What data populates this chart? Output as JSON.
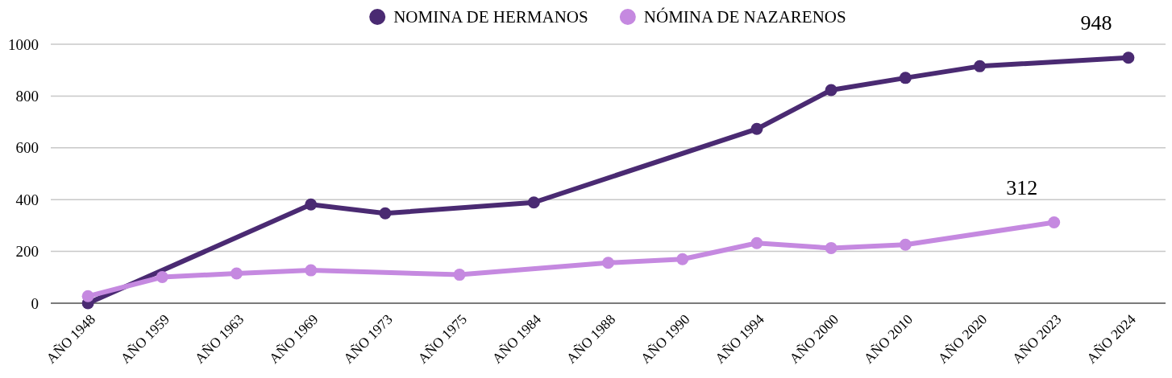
{
  "chart_data": {
    "type": "line",
    "categories": [
      "AÑO 1948",
      "AÑO 1959",
      "AÑO 1963",
      "AÑO 1969",
      "AÑO 1973",
      "AÑO 1975",
      "AÑO 1984",
      "AÑO 1988",
      "AÑO 1990",
      "AÑO 1994",
      "AÑO 2000",
      "AÑO 2010",
      "AÑO 2020",
      "AÑO 2023",
      "AÑO 2024"
    ],
    "series": [
      {
        "name": "NOMINA DE HERMANOS",
        "color": "#4a2a72",
        "values": [
          0,
          null,
          null,
          381,
          347,
          null,
          389,
          null,
          null,
          673,
          823,
          870,
          915,
          null,
          948
        ],
        "value_labels": [
          null,
          null,
          null,
          null,
          null,
          null,
          null,
          null,
          null,
          null,
          null,
          null,
          null,
          null,
          "948"
        ]
      },
      {
        "name": "NÓMINA DE NAZARENOS",
        "color": "#c589e0",
        "values": [
          27,
          101,
          115,
          127,
          null,
          110,
          null,
          156,
          170,
          232,
          213,
          226,
          null,
          312,
          null
        ],
        "value_labels": [
          null,
          null,
          null,
          null,
          null,
          null,
          null,
          null,
          null,
          null,
          null,
          null,
          null,
          "312",
          null
        ]
      }
    ],
    "ylim": [
      0,
      1000
    ],
    "yticks": [
      0,
      200,
      400,
      600,
      800,
      1000
    ],
    "grid": "y",
    "legend": "top",
    "marker": "circle",
    "line_style": "solid"
  }
}
